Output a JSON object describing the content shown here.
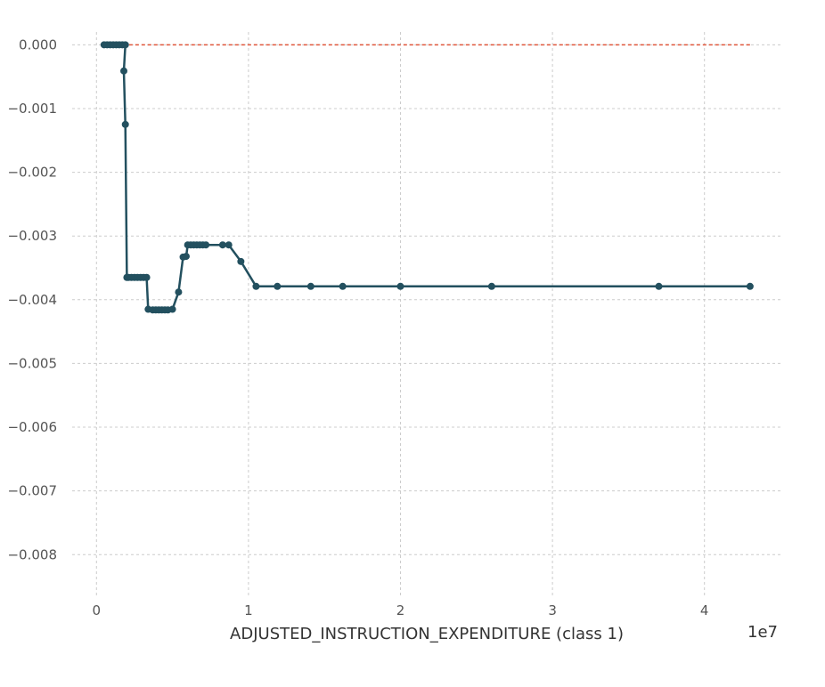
{
  "chart_data": {
    "type": "line",
    "title": "",
    "xlabel": "ADJUSTED_INSTRUCTION_EXPENDITURE (class 1)",
    "ylabel": "",
    "x_offset_label": "1e7",
    "xlim": [
      -0.16,
      4.5
    ],
    "ylim": [
      -0.00868,
      0.0002
    ],
    "x_ticks": [
      0,
      1,
      2,
      3,
      4
    ],
    "x_tick_labels": [
      "0",
      "1",
      "2",
      "3",
      "4"
    ],
    "y_ticks": [
      0.0,
      -0.001,
      -0.002,
      -0.003,
      -0.004,
      -0.005,
      -0.006,
      -0.007,
      -0.008
    ],
    "y_tick_labels": [
      "0.000",
      "−0.001",
      "−0.002",
      "−0.003",
      "−0.004",
      "−0.005",
      "−0.006",
      "−0.007",
      "−0.008"
    ],
    "grid": true,
    "colors": {
      "line": "#23505f",
      "reference": "#e0553a"
    },
    "reference_line": {
      "y": 0.0,
      "x_range": [
        0.05,
        4.3
      ],
      "style": "dashed"
    },
    "series": [
      {
        "x": [
          0.05,
          0.07,
          0.09,
          0.11,
          0.13,
          0.15,
          0.17,
          0.19,
          0.18,
          0.19,
          0.2,
          0.21,
          0.23,
          0.25,
          0.27,
          0.29,
          0.31,
          0.33,
          0.34,
          0.37,
          0.39,
          0.41,
          0.43,
          0.45,
          0.47,
          0.5,
          0.54,
          0.57,
          0.59,
          0.6,
          0.62,
          0.64,
          0.66,
          0.68,
          0.7,
          0.72,
          0.83,
          0.87,
          0.95,
          1.05,
          1.19,
          1.41,
          1.62,
          2.0,
          2.6,
          3.7,
          4.3
        ],
        "y": [
          0.0,
          0.0,
          0.0,
          0.0,
          0.0,
          0.0,
          0.0,
          0.0,
          -0.00041,
          -0.00125,
          -0.00365,
          -0.00365,
          -0.00365,
          -0.00365,
          -0.00365,
          -0.00365,
          -0.00365,
          -0.00365,
          -0.00415,
          -0.00416,
          -0.00416,
          -0.00416,
          -0.00416,
          -0.00416,
          -0.00416,
          -0.00415,
          -0.00388,
          -0.00333,
          -0.00332,
          -0.00314,
          -0.00314,
          -0.00314,
          -0.00314,
          -0.00314,
          -0.00314,
          -0.00314,
          -0.00314,
          -0.00314,
          -0.0034,
          -0.00379,
          -0.00379,
          -0.00379,
          -0.00379,
          -0.00379,
          -0.00379,
          -0.00379,
          -0.00379
        ]
      }
    ]
  }
}
